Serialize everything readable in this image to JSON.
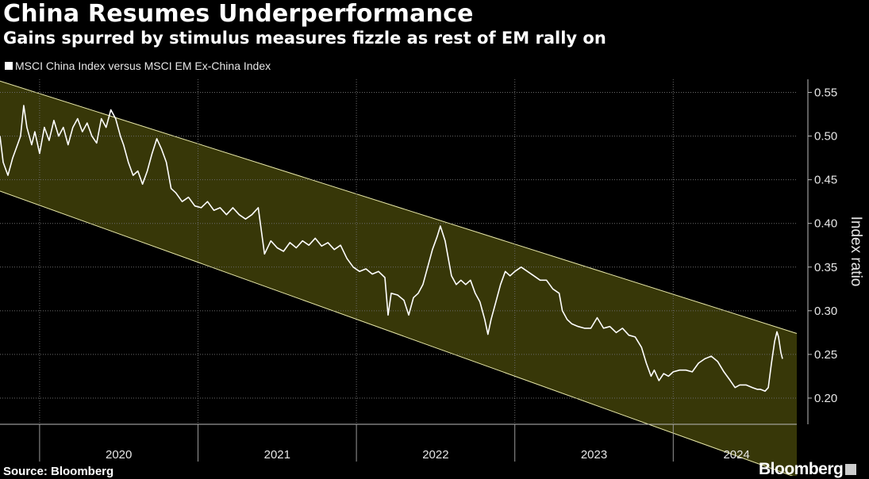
{
  "title": "China Resumes Underperformance",
  "subtitle": "Gains spurred by stimulus measures fizzle as rest of EM rally on",
  "source": "Source: Bloomberg",
  "brand": "Bloomberg",
  "colors": {
    "line": "#ffffff",
    "band_fill": "#3a3a08",
    "band_edge": "#e8e8a8",
    "grid": "#6a6a6a",
    "background": "#000000"
  },
  "chart_data": {
    "type": "line",
    "ylabel": "Index ratio",
    "xlim": [
      2019.75,
      2024.78
    ],
    "ylim": [
      0.17,
      0.565
    ],
    "yticks": [
      0.2,
      0.25,
      0.3,
      0.35,
      0.4,
      0.45,
      0.5,
      0.55
    ],
    "ytick_labels": [
      "0.20",
      "0.25",
      "0.30",
      "0.35",
      "0.40",
      "0.45",
      "0.50",
      "0.55"
    ],
    "year_boundaries": [
      2020.0,
      2021.0,
      2022.0,
      2023.0,
      2024.0
    ],
    "xtick_labels": [
      {
        "label": "2020",
        "x": 2020.5
      },
      {
        "label": "2021",
        "x": 2021.5
      },
      {
        "label": "2022",
        "x": 2022.5
      },
      {
        "label": "2023",
        "x": 2023.5
      },
      {
        "label": "2024",
        "x": 2024.4
      }
    ],
    "grid": true,
    "legend_position": "top-left",
    "channel": {
      "upper": [
        [
          2019.75,
          0.563
        ],
        [
          2024.78,
          0.274
        ]
      ],
      "lower": [
        [
          2019.75,
          0.437
        ],
        [
          2024.78,
          0.109
        ]
      ]
    },
    "series": [
      {
        "name": "MSCI China Index versus MSCI EM Ex-China Index",
        "points": [
          [
            2019.75,
            0.5
          ],
          [
            2019.77,
            0.47
          ],
          [
            2019.8,
            0.455
          ],
          [
            2019.83,
            0.475
          ],
          [
            2019.86,
            0.49
          ],
          [
            2019.88,
            0.5
          ],
          [
            2019.9,
            0.535
          ],
          [
            2019.92,
            0.51
          ],
          [
            2019.95,
            0.49
          ],
          [
            2019.97,
            0.505
          ],
          [
            2020.0,
            0.48
          ],
          [
            2020.03,
            0.51
          ],
          [
            2020.06,
            0.495
          ],
          [
            2020.09,
            0.518
          ],
          [
            2020.12,
            0.5
          ],
          [
            2020.15,
            0.51
          ],
          [
            2020.18,
            0.49
          ],
          [
            2020.21,
            0.51
          ],
          [
            2020.24,
            0.52
          ],
          [
            2020.27,
            0.505
          ],
          [
            2020.3,
            0.515
          ],
          [
            2020.33,
            0.5
          ],
          [
            2020.36,
            0.492
          ],
          [
            2020.39,
            0.52
          ],
          [
            2020.42,
            0.51
          ],
          [
            2020.45,
            0.53
          ],
          [
            2020.48,
            0.52
          ],
          [
            2020.51,
            0.5
          ],
          [
            2020.53,
            0.49
          ],
          [
            2020.56,
            0.47
          ],
          [
            2020.59,
            0.455
          ],
          [
            2020.62,
            0.46
          ],
          [
            2020.65,
            0.445
          ],
          [
            2020.68,
            0.46
          ],
          [
            2020.71,
            0.48
          ],
          [
            2020.74,
            0.497
          ],
          [
            2020.77,
            0.485
          ],
          [
            2020.8,
            0.47
          ],
          [
            2020.83,
            0.44
          ],
          [
            2020.86,
            0.435
          ],
          [
            2020.9,
            0.425
          ],
          [
            2020.94,
            0.43
          ],
          [
            2020.98,
            0.42
          ],
          [
            2021.02,
            0.418
          ],
          [
            2021.06,
            0.425
          ],
          [
            2021.1,
            0.415
          ],
          [
            2021.14,
            0.418
          ],
          [
            2021.18,
            0.41
          ],
          [
            2021.22,
            0.418
          ],
          [
            2021.26,
            0.41
          ],
          [
            2021.3,
            0.405
          ],
          [
            2021.34,
            0.41
          ],
          [
            2021.38,
            0.418
          ],
          [
            2021.42,
            0.365
          ],
          [
            2021.46,
            0.38
          ],
          [
            2021.5,
            0.372
          ],
          [
            2021.54,
            0.368
          ],
          [
            2021.58,
            0.378
          ],
          [
            2021.62,
            0.372
          ],
          [
            2021.66,
            0.38
          ],
          [
            2021.7,
            0.375
          ],
          [
            2021.74,
            0.383
          ],
          [
            2021.78,
            0.374
          ],
          [
            2021.82,
            0.378
          ],
          [
            2021.86,
            0.37
          ],
          [
            2021.9,
            0.375
          ],
          [
            2021.94,
            0.36
          ],
          [
            2021.98,
            0.35
          ],
          [
            2022.02,
            0.345
          ],
          [
            2022.06,
            0.348
          ],
          [
            2022.1,
            0.342
          ],
          [
            2022.14,
            0.345
          ],
          [
            2022.18,
            0.338
          ],
          [
            2022.2,
            0.295
          ],
          [
            2022.22,
            0.32
          ],
          [
            2022.26,
            0.318
          ],
          [
            2022.3,
            0.312
          ],
          [
            2022.33,
            0.295
          ],
          [
            2022.36,
            0.315
          ],
          [
            2022.39,
            0.32
          ],
          [
            2022.42,
            0.33
          ],
          [
            2022.45,
            0.35
          ],
          [
            2022.48,
            0.37
          ],
          [
            2022.51,
            0.385
          ],
          [
            2022.53,
            0.397
          ],
          [
            2022.56,
            0.38
          ],
          [
            2022.58,
            0.36
          ],
          [
            2022.6,
            0.34
          ],
          [
            2022.63,
            0.33
          ],
          [
            2022.66,
            0.335
          ],
          [
            2022.69,
            0.33
          ],
          [
            2022.72,
            0.335
          ],
          [
            2022.75,
            0.32
          ],
          [
            2022.78,
            0.31
          ],
          [
            2022.81,
            0.29
          ],
          [
            2022.83,
            0.273
          ],
          [
            2022.85,
            0.29
          ],
          [
            2022.88,
            0.31
          ],
          [
            2022.91,
            0.33
          ],
          [
            2022.94,
            0.345
          ],
          [
            2022.97,
            0.34
          ],
          [
            2023.0,
            0.345
          ],
          [
            2023.04,
            0.35
          ],
          [
            2023.08,
            0.345
          ],
          [
            2023.12,
            0.34
          ],
          [
            2023.16,
            0.335
          ],
          [
            2023.2,
            0.335
          ],
          [
            2023.24,
            0.325
          ],
          [
            2023.28,
            0.32
          ],
          [
            2023.3,
            0.3
          ],
          [
            2023.33,
            0.29
          ],
          [
            2023.36,
            0.285
          ],
          [
            2023.4,
            0.282
          ],
          [
            2023.44,
            0.28
          ],
          [
            2023.48,
            0.28
          ],
          [
            2023.52,
            0.292
          ],
          [
            2023.56,
            0.28
          ],
          [
            2023.6,
            0.282
          ],
          [
            2023.64,
            0.275
          ],
          [
            2023.68,
            0.28
          ],
          [
            2023.72,
            0.272
          ],
          [
            2023.76,
            0.27
          ],
          [
            2023.8,
            0.258
          ],
          [
            2023.83,
            0.24
          ],
          [
            2023.86,
            0.225
          ],
          [
            2023.88,
            0.232
          ],
          [
            2023.91,
            0.22
          ],
          [
            2023.94,
            0.228
          ],
          [
            2023.97,
            0.225
          ],
          [
            2024.0,
            0.23
          ],
          [
            2024.04,
            0.232
          ],
          [
            2024.08,
            0.232
          ],
          [
            2024.12,
            0.23
          ],
          [
            2024.16,
            0.24
          ],
          [
            2024.2,
            0.245
          ],
          [
            2024.24,
            0.248
          ],
          [
            2024.28,
            0.242
          ],
          [
            2024.32,
            0.23
          ],
          [
            2024.36,
            0.22
          ],
          [
            2024.39,
            0.212
          ],
          [
            2024.42,
            0.215
          ],
          [
            2024.46,
            0.215
          ],
          [
            2024.5,
            0.212
          ],
          [
            2024.53,
            0.21
          ],
          [
            2024.55,
            0.21
          ],
          [
            2024.58,
            0.208
          ],
          [
            2024.6,
            0.212
          ],
          [
            2024.62,
            0.24
          ],
          [
            2024.64,
            0.265
          ],
          [
            2024.655,
            0.276
          ],
          [
            2024.665,
            0.27
          ],
          [
            2024.68,
            0.252
          ],
          [
            2024.69,
            0.245
          ]
        ]
      }
    ]
  }
}
